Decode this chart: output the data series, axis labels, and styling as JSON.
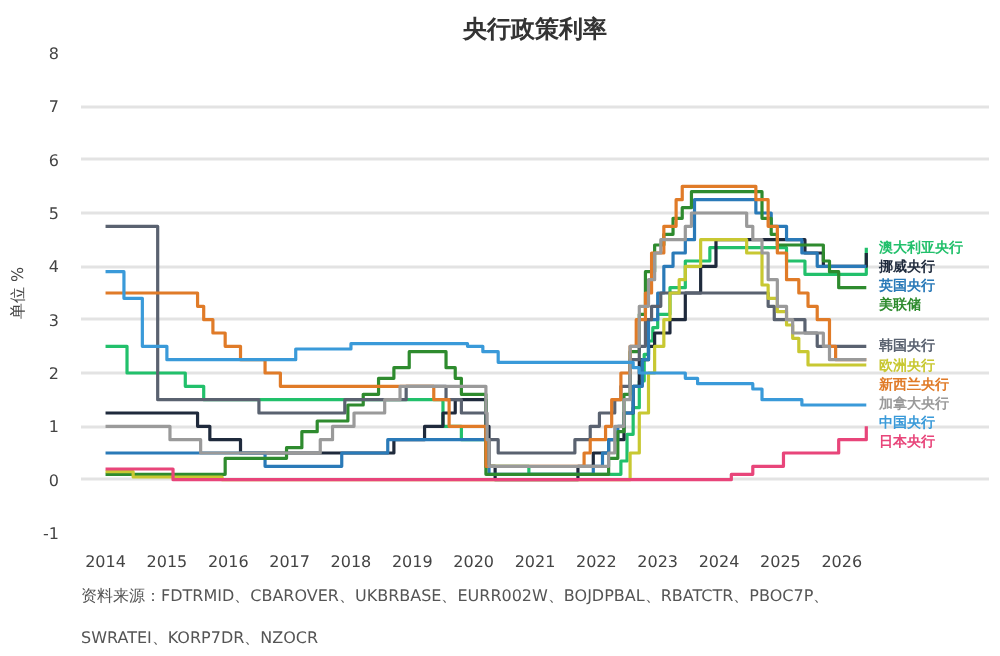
{
  "chart_data": {
    "type": "step",
    "title": "央行政策利率",
    "ylabel": "单位 %",
    "xlim": [
      2013.6,
      2028.4
    ],
    "ylim": [
      -1,
      8
    ],
    "xticks": [
      2014,
      2015,
      2016,
      2017,
      2018,
      2019,
      2020,
      2021,
      2022,
      2023,
      2024,
      2025,
      2026
    ],
    "yticks": [
      -1,
      0,
      1,
      2,
      3,
      4,
      5,
      6,
      7,
      8
    ],
    "grid": "y",
    "legend": "right",
    "annotations": [
      "资料来源：FDTRMID、CBAROVER、UKBRBASE、EURR002W、BOJDPBAL、RBATCTR、PBOC7P、SWRATEI、KORP7DR、NZOCR"
    ],
    "series": [
      {
        "name": "澳大利亚央行",
        "color": "#22c06b",
        "x": [
          2014,
          2014.35,
          2015.3,
          2015.6,
          2019.5,
          2019.8,
          2020.2,
          2020.9,
          2022.4,
          2022.5,
          2022.6,
          2022.7,
          2022.78,
          2022.85,
          2022.92,
          2023.0,
          2023.2,
          2023.45,
          2023.85,
          2025.1,
          2025.4,
          2026.4
        ],
        "values": [
          2.5,
          2.0,
          1.75,
          1.5,
          1.0,
          0.75,
          0.25,
          0.1,
          0.35,
          0.85,
          1.35,
          1.85,
          2.35,
          2.6,
          2.85,
          3.1,
          3.6,
          4.1,
          4.35,
          4.1,
          3.85,
          4.35
        ]
      },
      {
        "name": "挪威央行",
        "color": "#1f2a3c",
        "x": [
          2014,
          2015.5,
          2015.7,
          2016.2,
          2018.7,
          2019.2,
          2019.5,
          2019.7,
          2020.2,
          2020.25,
          2020.35,
          2021.7,
          2021.95,
          2022.2,
          2022.45,
          2022.6,
          2022.7,
          2022.85,
          2022.95,
          2023.2,
          2023.45,
          2023.7,
          2023.95,
          2025.4,
          2025.7,
          2026.4
        ],
        "values": [
          1.25,
          1.0,
          0.75,
          0.5,
          0.75,
          1.0,
          1.25,
          1.5,
          1.0,
          0.25,
          0.0,
          0.25,
          0.5,
          0.75,
          1.25,
          1.75,
          2.25,
          2.5,
          2.75,
          3.0,
          3.5,
          4.0,
          4.5,
          4.25,
          4.0,
          4.25
        ]
      },
      {
        "name": "英国央行",
        "color": "#2a7ab8",
        "x": [
          2014,
          2016.6,
          2017.85,
          2018.6,
          2020.2,
          2020.25,
          2021.95,
          2022.1,
          2022.2,
          2022.35,
          2022.45,
          2022.6,
          2022.75,
          2022.85,
          2023.0,
          2023.1,
          2023.25,
          2023.45,
          2023.6,
          2024.6,
          2024.85,
          2025.1,
          2025.35,
          2025.6,
          2026.4
        ],
        "values": [
          0.5,
          0.25,
          0.5,
          0.75,
          0.25,
          0.1,
          0.25,
          0.5,
          0.75,
          1.0,
          1.25,
          1.75,
          2.25,
          3.0,
          3.5,
          4.0,
          4.25,
          4.5,
          5.25,
          5.0,
          4.75,
          4.5,
          4.25,
          4.0,
          4.0
        ]
      },
      {
        "name": "美联储",
        "color": "#2e8b2e",
        "x": [
          2014,
          2015.95,
          2016.95,
          2017.2,
          2017.45,
          2017.95,
          2018.2,
          2018.45,
          2018.7,
          2018.95,
          2019.55,
          2019.7,
          2019.8,
          2020.2,
          2022.2,
          2022.35,
          2022.45,
          2022.55,
          2022.7,
          2022.8,
          2022.95,
          2023.1,
          2023.25,
          2023.4,
          2023.55,
          2024.7,
          2024.85,
          2024.95,
          2025.7,
          2025.8,
          2025.95,
          2026.4
        ],
        "values": [
          0.1,
          0.4,
          0.6,
          0.9,
          1.1,
          1.4,
          1.6,
          1.9,
          2.1,
          2.4,
          2.1,
          1.9,
          1.6,
          0.1,
          0.4,
          0.9,
          1.6,
          2.4,
          3.1,
          3.9,
          4.4,
          4.6,
          4.9,
          5.1,
          5.4,
          4.9,
          4.6,
          4.4,
          4.1,
          3.9,
          3.6,
          3.6
        ]
      },
      {
        "name": "韩国央行",
        "color": "#5a6270",
        "x": [
          2014,
          2014.85,
          2016.5,
          2017.9,
          2018.9,
          2019.55,
          2019.8,
          2020.2,
          2020.4,
          2021.65,
          2021.9,
          2022.05,
          2022.3,
          2022.4,
          2022.55,
          2022.7,
          2022.8,
          2022.9,
          2023.05,
          2024.8,
          2024.9,
          2025.4,
          2025.6,
          2026.4
        ],
        "values": [
          4.75,
          1.5,
          1.25,
          1.5,
          1.75,
          1.5,
          1.25,
          0.75,
          0.5,
          0.75,
          1.0,
          1.25,
          1.5,
          1.75,
          2.25,
          2.5,
          3.0,
          3.25,
          3.5,
          3.25,
          3.0,
          2.75,
          2.5,
          2.5
        ]
      },
      {
        "name": "欧洲央行",
        "color": "#c8c832",
        "x": [
          2014,
          2014.45,
          2015.9,
          2022.55,
          2022.7,
          2022.85,
          2022.95,
          2023.1,
          2023.2,
          2023.35,
          2023.45,
          2023.7,
          2024.45,
          2024.7,
          2024.8,
          2024.95,
          2025.1,
          2025.2,
          2025.3,
          2025.45,
          2026.4
        ],
        "values": [
          0.15,
          0.05,
          0.0,
          0.5,
          1.25,
          2.0,
          2.5,
          3.0,
          3.5,
          3.75,
          4.0,
          4.5,
          4.25,
          3.65,
          3.4,
          3.15,
          2.9,
          2.65,
          2.4,
          2.15,
          2.15
        ]
      },
      {
        "name": "新西兰央行",
        "color": "#e07b28",
        "x": [
          2014,
          2015.5,
          2015.6,
          2015.75,
          2015.95,
          2016.2,
          2016.6,
          2016.85,
          2019.35,
          2019.6,
          2020.2,
          2021.8,
          2021.9,
          2022.15,
          2022.25,
          2022.4,
          2022.55,
          2022.65,
          2022.8,
          2022.9,
          2023.1,
          2023.3,
          2023.4,
          2024.6,
          2024.8,
          2024.95,
          2025.1,
          2025.3,
          2025.45,
          2025.6,
          2025.8,
          2025.9,
          2026.4
        ],
        "values": [
          3.5,
          3.25,
          3.0,
          2.75,
          2.5,
          2.25,
          2.0,
          1.75,
          1.5,
          1.0,
          0.25,
          0.5,
          0.75,
          1.0,
          1.5,
          2.0,
          2.5,
          3.0,
          3.5,
          4.25,
          4.75,
          5.25,
          5.5,
          5.25,
          4.75,
          4.25,
          3.75,
          3.5,
          3.25,
          3.0,
          2.5,
          2.25,
          2.25
        ]
      },
      {
        "name": "加拿大央行",
        "color": "#9a9a9a",
        "x": [
          2014,
          2015.05,
          2015.55,
          2017.5,
          2017.7,
          2018.05,
          2018.55,
          2018.8,
          2020.2,
          2020.22,
          2020.25,
          2022.2,
          2022.3,
          2022.45,
          2022.55,
          2022.7,
          2022.85,
          2022.95,
          2023.05,
          2023.45,
          2023.55,
          2024.45,
          2024.55,
          2024.7,
          2024.8,
          2024.95,
          2025.1,
          2025.2,
          2025.7,
          2025.8,
          2026.4
        ],
        "values": [
          1.0,
          0.75,
          0.5,
          0.75,
          1.0,
          1.25,
          1.5,
          1.75,
          1.25,
          0.75,
          0.25,
          0.5,
          1.0,
          1.5,
          2.5,
          3.25,
          3.75,
          4.25,
          4.5,
          4.75,
          5.0,
          4.75,
          4.5,
          4.25,
          3.75,
          3.25,
          3.0,
          2.75,
          2.5,
          2.25,
          2.25
        ]
      },
      {
        "name": "中国央行",
        "color": "#3a9ad9",
        "x": [
          2014,
          2014.3,
          2014.6,
          2015.0,
          2017.1,
          2018.0,
          2019.9,
          2020.15,
          2020.4,
          2022.6,
          2022.7,
          2023.45,
          2023.65,
          2024.55,
          2024.7,
          2025.35,
          2026.4
        ],
        "values": [
          3.9,
          3.4,
          2.5,
          2.25,
          2.45,
          2.55,
          2.5,
          2.4,
          2.2,
          2.1,
          2.0,
          1.9,
          1.8,
          1.7,
          1.5,
          1.4,
          1.4
        ]
      },
      {
        "name": "日本央行",
        "color": "#e8457a",
        "x": [
          2014,
          2015.1,
          2024.2,
          2024.55,
          2025.05,
          2025.95,
          2026.4
        ],
        "values": [
          0.2,
          0.0,
          0.1,
          0.25,
          0.5,
          0.75,
          1.0
        ]
      }
    ]
  }
}
